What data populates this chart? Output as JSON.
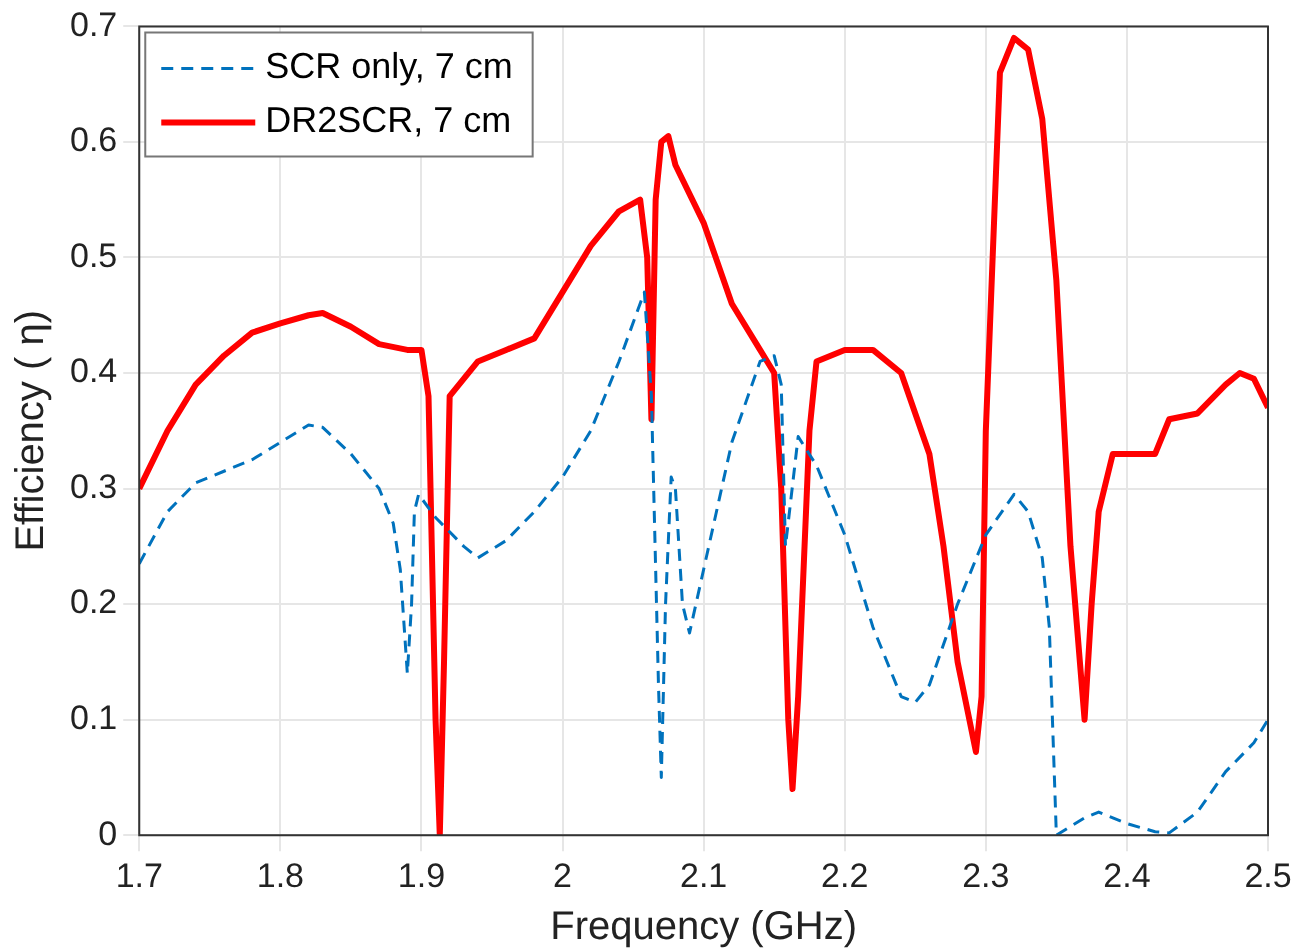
{
  "chart_data": {
    "type": "line",
    "xlabel": "Frequency (GHz)",
    "ylabel": "Efficiency ( η)",
    "xlim": [
      1.7,
      2.5
    ],
    "xticks": [
      1.7,
      1.8,
      1.9,
      2,
      2.1,
      2.2,
      2.3,
      2.4,
      2.5
    ],
    "ylim": [
      0,
      0.7
    ],
    "yticks": [
      0,
      0.1,
      0.2,
      0.3,
      0.4,
      0.5,
      0.6,
      0.7
    ],
    "grid": true,
    "legend": "top left",
    "marker": "none",
    "series": [
      {
        "name": "SCR only, 7 cm",
        "color": "#0072bd",
        "line_style": "dashed",
        "x": [
          1.7,
          1.72,
          1.74,
          1.76,
          1.78,
          1.8,
          1.82,
          1.83,
          1.85,
          1.87,
          1.88,
          1.885,
          1.89,
          1.893,
          1.895,
          1.898,
          1.91,
          1.93,
          1.94,
          1.96,
          1.98,
          2.0,
          2.02,
          2.04,
          2.058,
          2.063,
          2.068,
          2.07,
          2.073,
          2.077,
          2.08,
          2.085,
          2.09,
          2.1,
          2.12,
          2.14,
          2.15,
          2.155,
          2.158,
          2.167,
          2.18,
          2.2,
          2.22,
          2.24,
          2.25,
          2.26,
          2.28,
          2.3,
          2.32,
          2.33,
          2.34,
          2.345,
          2.35,
          2.37,
          2.38,
          2.4,
          2.42,
          2.43,
          2.45,
          2.47,
          2.49,
          2.5
        ],
        "values": [
          0.235,
          0.28,
          0.305,
          0.315,
          0.325,
          0.34,
          0.355,
          0.353,
          0.33,
          0.3,
          0.27,
          0.23,
          0.14,
          0.2,
          0.28,
          0.295,
          0.275,
          0.25,
          0.24,
          0.255,
          0.28,
          0.31,
          0.35,
          0.41,
          0.47,
          0.38,
          0.13,
          0.05,
          0.2,
          0.31,
          0.3,
          0.2,
          0.175,
          0.23,
          0.34,
          0.41,
          0.415,
          0.39,
          0.25,
          0.345,
          0.32,
          0.26,
          0.18,
          0.12,
          0.115,
          0.13,
          0.2,
          0.26,
          0.295,
          0.28,
          0.24,
          0.18,
          0.0,
          0.015,
          0.02,
          0.01,
          0.003,
          0.002,
          0.02,
          0.055,
          0.08,
          0.1
        ]
      },
      {
        "name": "DR2SCR, 7 cm",
        "color": "#ff0000",
        "line_style": "solid",
        "x": [
          1.7,
          1.72,
          1.74,
          1.76,
          1.78,
          1.8,
          1.82,
          1.83,
          1.85,
          1.87,
          1.89,
          1.9,
          1.905,
          1.91,
          1.913,
          1.916,
          1.92,
          1.94,
          1.96,
          1.98,
          2.0,
          2.02,
          2.04,
          2.055,
          2.06,
          2.063,
          2.066,
          2.07,
          2.075,
          2.08,
          2.1,
          2.12,
          2.14,
          2.15,
          2.155,
          2.16,
          2.163,
          2.167,
          2.175,
          2.18,
          2.2,
          2.22,
          2.24,
          2.26,
          2.27,
          2.28,
          2.293,
          2.297,
          2.3,
          2.31,
          2.32,
          2.33,
          2.34,
          2.35,
          2.36,
          2.37,
          2.375,
          2.38,
          2.39,
          2.4,
          2.42,
          2.43,
          2.45,
          2.47,
          2.48,
          2.49,
          2.5
        ],
        "values": [
          0.3,
          0.35,
          0.39,
          0.415,
          0.435,
          0.443,
          0.45,
          0.452,
          0.44,
          0.425,
          0.42,
          0.42,
          0.38,
          0.1,
          0.0,
          0.15,
          0.38,
          0.41,
          0.42,
          0.43,
          0.47,
          0.51,
          0.54,
          0.55,
          0.5,
          0.36,
          0.55,
          0.6,
          0.605,
          0.58,
          0.53,
          0.46,
          0.42,
          0.4,
          0.3,
          0.1,
          0.04,
          0.12,
          0.35,
          0.41,
          0.42,
          0.42,
          0.4,
          0.33,
          0.25,
          0.15,
          0.072,
          0.12,
          0.35,
          0.66,
          0.69,
          0.68,
          0.62,
          0.48,
          0.25,
          0.1,
          0.2,
          0.28,
          0.33,
          0.33,
          0.33,
          0.36,
          0.365,
          0.39,
          0.4,
          0.395,
          0.37
        ]
      }
    ]
  }
}
